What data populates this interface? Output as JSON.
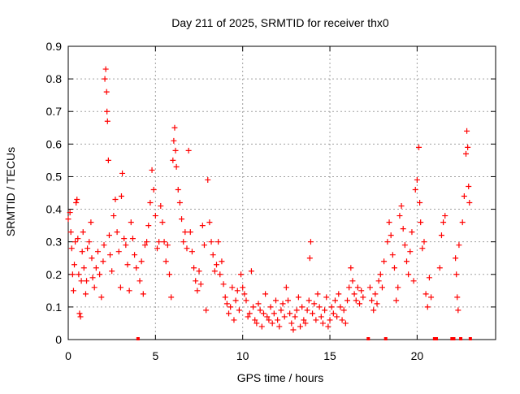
{
  "chart_data": {
    "type": "scatter",
    "title": "Day 211 of 2025, SRMTID for receiver thx0",
    "xlabel": "GPS time / hours",
    "ylabel": "SRMTID / TECUs",
    "xlim": [
      0,
      24.5
    ],
    "ylim": [
      0,
      0.9
    ],
    "grid": true,
    "marker": "+",
    "colors": {
      "series": "#ff0000",
      "grid": "#a0a0a0",
      "axis": "#000000"
    },
    "xticks": [
      {
        "v": 0,
        "l": "0"
      },
      {
        "v": 5,
        "l": "5"
      },
      {
        "v": 10,
        "l": "10"
      },
      {
        "v": 15,
        "l": "15"
      },
      {
        "v": 20,
        "l": "20"
      }
    ],
    "yticks": [
      {
        "v": 0,
        "l": "0"
      },
      {
        "v": 0.1,
        "l": "0.1"
      },
      {
        "v": 0.2,
        "l": "0.2"
      },
      {
        "v": 0.3,
        "l": "0.3"
      },
      {
        "v": 0.4,
        "l": "0.4"
      },
      {
        "v": 0.5,
        "l": "0.5"
      },
      {
        "v": 0.6,
        "l": "0.6"
      },
      {
        "v": 0.7,
        "l": "0.7"
      },
      {
        "v": 0.8,
        "l": "0.8"
      },
      {
        "v": 0.9,
        "l": "0.9"
      }
    ],
    "series": [
      {
        "name": "SRMTID",
        "points": [
          [
            0.0,
            0.37
          ],
          [
            0.1,
            0.39
          ],
          [
            0.15,
            0.33
          ],
          [
            0.2,
            0.28
          ],
          [
            0.25,
            0.2
          ],
          [
            0.3,
            0.15
          ],
          [
            0.35,
            0.23
          ],
          [
            0.4,
            0.3
          ],
          [
            0.45,
            0.42
          ],
          [
            0.5,
            0.43
          ],
          [
            0.55,
            0.31
          ],
          [
            0.6,
            0.2
          ],
          [
            0.65,
            0.08
          ],
          [
            0.7,
            0.07
          ],
          [
            0.75,
            0.18
          ],
          [
            0.8,
            0.27
          ],
          [
            0.85,
            0.33
          ],
          [
            0.9,
            0.22
          ],
          [
            1.0,
            0.14
          ],
          [
            1.05,
            0.18
          ],
          [
            1.1,
            0.28
          ],
          [
            1.2,
            0.3
          ],
          [
            1.3,
            0.36
          ],
          [
            1.35,
            0.25
          ],
          [
            1.4,
            0.19
          ],
          [
            1.5,
            0.16
          ],
          [
            1.6,
            0.22
          ],
          [
            1.7,
            0.27
          ],
          [
            1.8,
            0.2
          ],
          [
            1.9,
            0.13
          ],
          [
            2.0,
            0.24
          ],
          [
            2.05,
            0.29
          ],
          [
            2.1,
            0.8
          ],
          [
            2.15,
            0.83
          ],
          [
            2.2,
            0.76
          ],
          [
            2.22,
            0.7
          ],
          [
            2.25,
            0.67
          ],
          [
            2.3,
            0.55
          ],
          [
            2.35,
            0.32
          ],
          [
            2.4,
            0.26
          ],
          [
            2.5,
            0.21
          ],
          [
            2.6,
            0.38
          ],
          [
            2.7,
            0.43
          ],
          [
            2.8,
            0.33
          ],
          [
            2.9,
            0.27
          ],
          [
            3.0,
            0.16
          ],
          [
            3.05,
            0.44
          ],
          [
            3.1,
            0.51
          ],
          [
            3.2,
            0.31
          ],
          [
            3.3,
            0.29
          ],
          [
            3.4,
            0.23
          ],
          [
            3.5,
            0.15
          ],
          [
            3.6,
            0.36
          ],
          [
            3.7,
            0.31
          ],
          [
            3.8,
            0.26
          ],
          [
            3.9,
            0.22
          ],
          [
            4.0,
            0.0
          ],
          [
            4.1,
            0.18
          ],
          [
            4.2,
            0.24
          ],
          [
            4.3,
            0.14
          ],
          [
            4.4,
            0.29
          ],
          [
            4.5,
            0.3
          ],
          [
            4.6,
            0.35
          ],
          [
            4.7,
            0.42
          ],
          [
            4.8,
            0.52
          ],
          [
            4.9,
            0.46
          ],
          [
            5.0,
            0.38
          ],
          [
            5.1,
            0.28
          ],
          [
            5.2,
            0.3
          ],
          [
            5.3,
            0.41
          ],
          [
            5.4,
            0.36
          ],
          [
            5.5,
            0.3
          ],
          [
            5.6,
            0.24
          ],
          [
            5.7,
            0.29
          ],
          [
            5.8,
            0.2
          ],
          [
            5.9,
            0.13
          ],
          [
            6.0,
            0.55
          ],
          [
            6.05,
            0.61
          ],
          [
            6.1,
            0.65
          ],
          [
            6.15,
            0.58
          ],
          [
            6.2,
            0.53
          ],
          [
            6.3,
            0.46
          ],
          [
            6.4,
            0.42
          ],
          [
            6.5,
            0.37
          ],
          [
            6.6,
            0.3
          ],
          [
            6.7,
            0.33
          ],
          [
            6.8,
            0.28
          ],
          [
            6.9,
            0.58
          ],
          [
            7.0,
            0.33
          ],
          [
            7.1,
            0.27
          ],
          [
            7.2,
            0.22
          ],
          [
            7.3,
            0.18
          ],
          [
            7.4,
            0.15
          ],
          [
            7.5,
            0.21
          ],
          [
            7.6,
            0.17
          ],
          [
            7.7,
            0.35
          ],
          [
            7.8,
            0.29
          ],
          [
            7.9,
            0.09
          ],
          [
            8.0,
            0.49
          ],
          [
            8.1,
            0.36
          ],
          [
            8.2,
            0.3
          ],
          [
            8.3,
            0.26
          ],
          [
            8.4,
            0.21
          ],
          [
            8.5,
            0.23
          ],
          [
            8.6,
            0.3
          ],
          [
            8.7,
            0.2
          ],
          [
            8.8,
            0.24
          ],
          [
            8.9,
            0.17
          ],
          [
            9.0,
            0.13
          ],
          [
            9.1,
            0.11
          ],
          [
            9.2,
            0.08
          ],
          [
            9.3,
            0.1
          ],
          [
            9.4,
            0.16
          ],
          [
            9.5,
            0.06
          ],
          [
            9.6,
            0.12
          ],
          [
            9.7,
            0.15
          ],
          [
            9.8,
            0.09
          ],
          [
            9.9,
            0.2
          ],
          [
            10.0,
            0.16
          ],
          [
            10.1,
            0.14
          ],
          [
            10.2,
            0.12
          ],
          [
            10.3,
            0.07
          ],
          [
            10.4,
            0.08
          ],
          [
            10.5,
            0.21
          ],
          [
            10.6,
            0.1
          ],
          [
            10.7,
            0.06
          ],
          [
            10.8,
            0.05
          ],
          [
            10.9,
            0.11
          ],
          [
            11.0,
            0.09
          ],
          [
            11.1,
            0.04
          ],
          [
            11.2,
            0.08
          ],
          [
            11.3,
            0.14
          ],
          [
            11.4,
            0.07
          ],
          [
            11.5,
            0.06
          ],
          [
            11.6,
            0.1
          ],
          [
            11.7,
            0.05
          ],
          [
            11.8,
            0.08
          ],
          [
            11.9,
            0.12
          ],
          [
            12.0,
            0.06
          ],
          [
            12.1,
            0.04
          ],
          [
            12.2,
            0.09
          ],
          [
            12.3,
            0.11
          ],
          [
            12.4,
            0.07
          ],
          [
            12.5,
            0.16
          ],
          [
            12.6,
            0.12
          ],
          [
            12.7,
            0.08
          ],
          [
            12.8,
            0.05
          ],
          [
            12.9,
            0.03
          ],
          [
            13.0,
            0.07
          ],
          [
            13.1,
            0.09
          ],
          [
            13.2,
            0.13
          ],
          [
            13.3,
            0.04
          ],
          [
            13.4,
            0.1
          ],
          [
            13.5,
            0.06
          ],
          [
            13.6,
            0.05
          ],
          [
            13.7,
            0.09
          ],
          [
            13.8,
            0.12
          ],
          [
            13.85,
            0.25
          ],
          [
            13.9,
            0.3
          ],
          [
            14.0,
            0.08
          ],
          [
            14.1,
            0.11
          ],
          [
            14.2,
            0.06
          ],
          [
            14.3,
            0.14
          ],
          [
            14.4,
            0.1
          ],
          [
            14.5,
            0.07
          ],
          [
            14.6,
            0.05
          ],
          [
            14.7,
            0.09
          ],
          [
            14.8,
            0.13
          ],
          [
            14.9,
            0.04
          ],
          [
            15.0,
            0.06
          ],
          [
            15.1,
            0.1
          ],
          [
            15.2,
            0.08
          ],
          [
            15.3,
            0.12
          ],
          [
            15.4,
            0.07
          ],
          [
            15.5,
            0.14
          ],
          [
            15.6,
            0.1
          ],
          [
            15.7,
            0.06
          ],
          [
            15.8,
            0.09
          ],
          [
            15.9,
            0.05
          ],
          [
            16.0,
            0.12
          ],
          [
            16.1,
            0.16
          ],
          [
            16.2,
            0.22
          ],
          [
            16.3,
            0.18
          ],
          [
            16.4,
            0.14
          ],
          [
            16.5,
            0.12
          ],
          [
            16.6,
            0.16
          ],
          [
            16.7,
            0.11
          ],
          [
            16.8,
            0.15
          ],
          [
            16.9,
            0.13
          ],
          [
            17.2,
            0.0
          ],
          [
            17.3,
            0.16
          ],
          [
            17.4,
            0.12
          ],
          [
            17.5,
            0.09
          ],
          [
            17.6,
            0.14
          ],
          [
            17.7,
            0.11
          ],
          [
            17.8,
            0.18
          ],
          [
            17.9,
            0.2
          ],
          [
            18.0,
            0.16
          ],
          [
            18.1,
            0.24
          ],
          [
            18.2,
            0.0
          ],
          [
            18.3,
            0.3
          ],
          [
            18.4,
            0.36
          ],
          [
            18.5,
            0.32
          ],
          [
            18.6,
            0.26
          ],
          [
            18.7,
            0.22
          ],
          [
            18.8,
            0.12
          ],
          [
            18.9,
            0.16
          ],
          [
            19.0,
            0.38
          ],
          [
            19.1,
            0.41
          ],
          [
            19.2,
            0.34
          ],
          [
            19.3,
            0.29
          ],
          [
            19.4,
            0.24
          ],
          [
            19.5,
            0.2
          ],
          [
            19.6,
            0.27
          ],
          [
            19.7,
            0.33
          ],
          [
            19.8,
            0.18
          ],
          [
            19.9,
            0.46
          ],
          [
            20.0,
            0.49
          ],
          [
            20.1,
            0.59
          ],
          [
            20.15,
            0.42
          ],
          [
            20.2,
            0.36
          ],
          [
            20.3,
            0.28
          ],
          [
            20.4,
            0.3
          ],
          [
            20.5,
            0.14
          ],
          [
            20.6,
            0.1
          ],
          [
            20.7,
            0.19
          ],
          [
            20.8,
            0.13
          ],
          [
            21.0,
            0.0
          ],
          [
            21.1,
            0.0
          ],
          [
            21.3,
            0.22
          ],
          [
            21.4,
            0.32
          ],
          [
            21.5,
            0.36
          ],
          [
            21.6,
            0.38
          ],
          [
            22.0,
            0.0
          ],
          [
            22.1,
            0.0
          ],
          [
            22.2,
            0.25
          ],
          [
            22.25,
            0.2
          ],
          [
            22.3,
            0.13
          ],
          [
            22.35,
            0.09
          ],
          [
            22.4,
            0.29
          ],
          [
            22.5,
            0.0
          ],
          [
            22.6,
            0.36
          ],
          [
            22.7,
            0.44
          ],
          [
            22.8,
            0.57
          ],
          [
            22.85,
            0.64
          ],
          [
            22.9,
            0.59
          ],
          [
            22.95,
            0.47
          ],
          [
            23.0,
            0.42
          ],
          [
            23.05,
            0.0
          ]
        ]
      }
    ]
  }
}
